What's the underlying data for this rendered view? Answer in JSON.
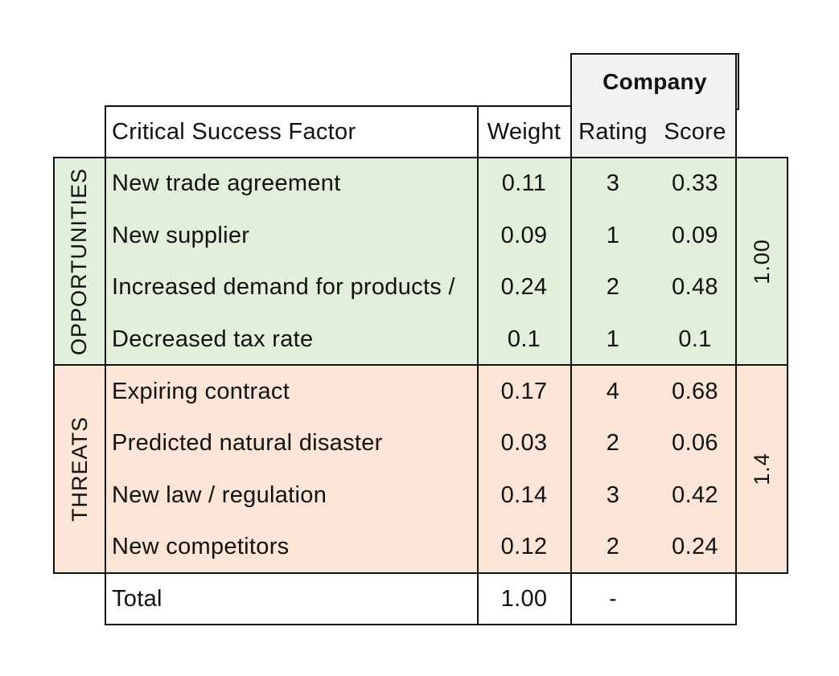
{
  "header": {
    "company": "Company",
    "factor_col": "Critical Success Factor",
    "weight_col": "Weight",
    "rating_col": "Rating",
    "score_col": "Score"
  },
  "groups": {
    "opportunities": {
      "label": "OPPORTUNITIES",
      "subtotal": "1.00",
      "rows": [
        {
          "factor": "New trade agreement",
          "weight": "0.11",
          "rating": "3",
          "score": "0.33"
        },
        {
          "factor": "New supplier",
          "weight": "0.09",
          "rating": "1",
          "score": "0.09"
        },
        {
          "factor": "Increased demand for products /",
          "weight": "0.24",
          "rating": "2",
          "score": "0.48"
        },
        {
          "factor": "Decreased tax rate",
          "weight": "0.1",
          "rating": "1",
          "score": "0.1"
        }
      ]
    },
    "threats": {
      "label": "THREATS",
      "subtotal": "1.4",
      "rows": [
        {
          "factor": "Expiring contract",
          "weight": "0.17",
          "rating": "4",
          "score": "0.68"
        },
        {
          "factor": "Predicted natural disaster",
          "weight": "0.03",
          "rating": "2",
          "score": "0.06"
        },
        {
          "factor": "New law / regulation",
          "weight": "0.14",
          "rating": "3",
          "score": "0.42"
        },
        {
          "factor": "New competitors",
          "weight": "0.12",
          "rating": "2",
          "score": "0.24"
        }
      ]
    }
  },
  "total": {
    "label": "Total",
    "weight": "1.00",
    "rating": "-",
    "score": ""
  },
  "colors": {
    "opportunities_bg": "#e2efda",
    "threats_bg": "#fce4d6",
    "company_header_bg": "#f2f2f2",
    "border": "#111111"
  }
}
